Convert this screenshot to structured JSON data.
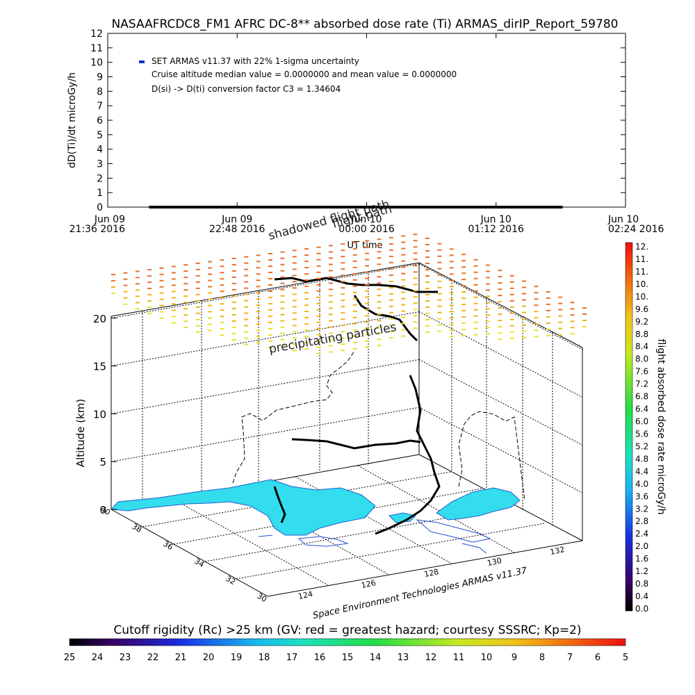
{
  "title": "NASAAFRCDC8_FM1 AFRC DC-8** absorbed dose rate (Ti) ARMAS_dirIP_Report_59780",
  "chart_data": [
    {
      "type": "line",
      "ylabel": "dD(Ti)/dt microGy/h",
      "xlabel": "UT time",
      "ylim": [
        0,
        12
      ],
      "yticks": [
        0,
        1,
        2,
        3,
        4,
        5,
        6,
        7,
        8,
        9,
        10,
        11,
        12
      ],
      "xticks": [
        {
          "date": "Jun 09",
          "time": "21:36 2016"
        },
        {
          "date": "Jun 09",
          "time": "22:48 2016"
        },
        {
          "date": "Jun 10",
          "time": "00:00 2016"
        },
        {
          "date": "Jun 10",
          "time": "01:12 2016"
        },
        {
          "date": "Jun 10",
          "time": "02:24 2016"
        }
      ],
      "xrange_minutes_from_first_tick": [
        0,
        288
      ],
      "series": [
        {
          "name": "SET ARMAS v11.37 with 22% 1-sigma uncertainty",
          "color": "#0000cc",
          "x_start_min": 23,
          "x_end_min": 253,
          "y": 0
        }
      ],
      "annotations": [
        "Cruise altitude median value = 0.0000000 and mean value = 0.0000000",
        "D(si) -> D(ti) conversion factor C3 = 1.34604"
      ],
      "grid": false
    },
    {
      "type": "scatter",
      "subtype": "3d",
      "zlabel": "Altitude (km)",
      "zticks": [
        0,
        5,
        10,
        15,
        20
      ],
      "xticks": [
        "124",
        "126",
        "128",
        "130",
        "132"
      ],
      "yticks": [
        "40",
        "38",
        "36",
        "34",
        "32",
        "30"
      ],
      "annotations": [
        "shadowed flight path",
        "flight path",
        "precipitating particles"
      ],
      "credit": "Space Environment Technologies ARMAS v11.37",
      "land_color": "#33ddee"
    }
  ],
  "colorbar_right": {
    "label": "flight absorbed dose rate microGy/h",
    "ticks": [
      "12.",
      "11.",
      "11.",
      "10.",
      "10.",
      "9.6",
      "9.2",
      "8.8",
      "8.4",
      "8.0",
      "7.6",
      "7.2",
      "6.8",
      "6.4",
      "6.0",
      "5.6",
      "5.2",
      "4.8",
      "4.4",
      "4.0",
      "3.6",
      "3.2",
      "2.8",
      "2.4",
      "2.0",
      "1.6",
      "1.2",
      "0.8",
      "0.4",
      "0.0"
    ]
  },
  "colorbar_bottom": {
    "label": "Cutoff rigidity (Rc) >25 km (GV: red = greatest hazard; courtesy SSSRC; Kp=2)",
    "ticks": [
      "25",
      "24",
      "23",
      "22",
      "21",
      "20",
      "19",
      "18",
      "17",
      "16",
      "15",
      "14",
      "13",
      "12",
      "11",
      "10",
      "9",
      "8",
      "7",
      "6",
      "5"
    ]
  }
}
